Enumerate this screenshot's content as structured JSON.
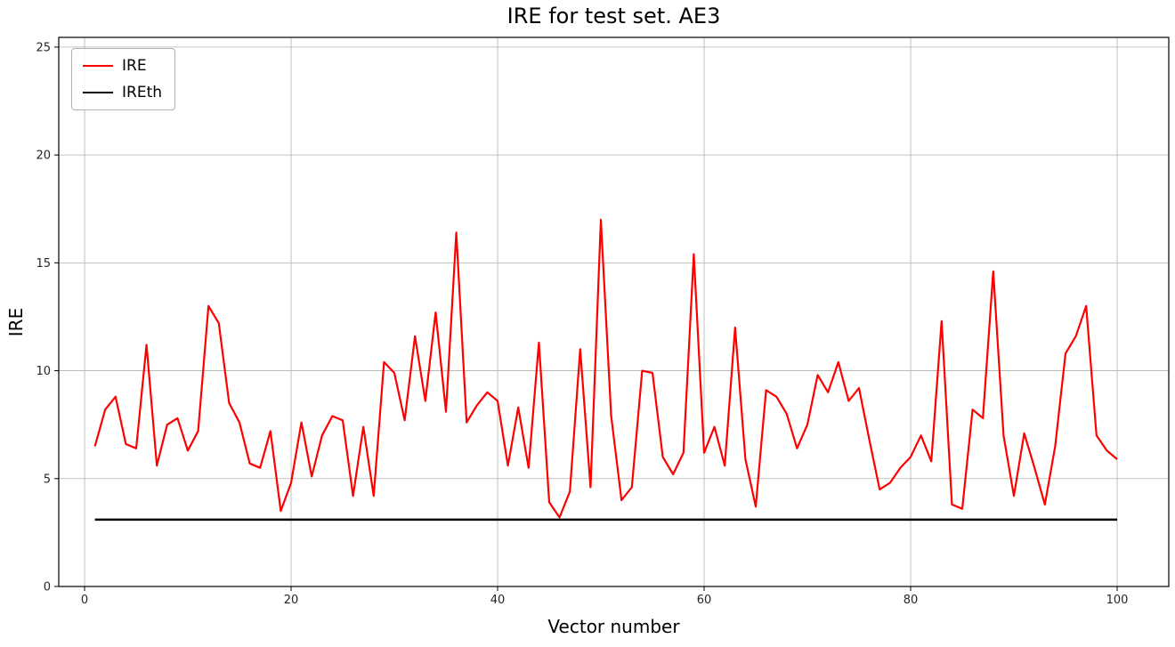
{
  "chart_data": {
    "type": "line",
    "title": "IRE for test set. AE3",
    "xlabel": "Vector number",
    "ylabel": "IRE",
    "xlim": [
      -2.5,
      105
    ],
    "ylim": [
      0,
      25.45
    ],
    "xticks": [
      0,
      20,
      40,
      60,
      80,
      100
    ],
    "yticks": [
      0,
      5,
      10,
      15,
      20,
      25
    ],
    "grid": true,
    "legend_position": "upper-left",
    "x_start": 1,
    "series": [
      {
        "name": "IRE",
        "color": "#ff0000",
        "values": [
          6.5,
          8.2,
          8.8,
          6.6,
          6.4,
          11.2,
          5.6,
          7.5,
          7.8,
          6.3,
          7.2,
          13.0,
          12.2,
          8.5,
          7.6,
          5.7,
          5.5,
          7.2,
          3.5,
          4.8,
          7.6,
          5.1,
          7.0,
          7.9,
          7.7,
          4.2,
          7.4,
          4.2,
          10.4,
          9.9,
          7.7,
          11.6,
          8.6,
          12.7,
          8.1,
          16.4,
          7.6,
          8.4,
          9.0,
          8.6,
          5.6,
          8.3,
          5.5,
          11.3,
          3.9,
          3.2,
          4.4,
          11.0,
          4.6,
          17.0,
          7.9,
          4.0,
          4.6,
          10.0,
          9.9,
          6.0,
          5.2,
          6.2,
          15.4,
          6.2,
          7.4,
          5.6,
          12.0,
          5.9,
          3.7,
          9.1,
          8.8,
          8.0,
          6.4,
          7.5,
          9.8,
          9.0,
          10.4,
          8.6,
          9.2,
          6.8,
          4.5,
          4.8,
          5.5,
          6.0,
          7.0,
          5.8,
          12.3,
          3.8,
          3.6,
          8.2,
          7.8,
          14.6,
          7.0,
          4.2,
          7.1,
          5.5,
          3.8,
          6.5,
          10.8,
          11.6,
          13.0,
          7.0,
          6.3,
          5.9
        ]
      },
      {
        "name": "IREth",
        "color": "#000000",
        "constant": 3.1,
        "x_range": [
          1,
          100
        ]
      }
    ]
  }
}
